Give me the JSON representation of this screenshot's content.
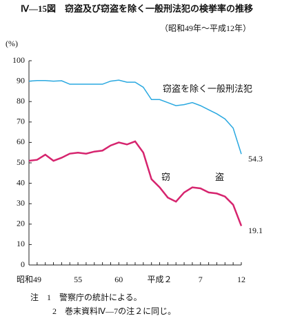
{
  "chart_data": {
    "type": "line",
    "title": "Ⅳ—15図　窃盗及び窃盗を除く一般刑法犯の検挙率の推移",
    "subtitle": "（昭和49年～平成12年）",
    "y_label": "(%)",
    "categories": [
      "昭和49",
      null,
      null,
      null,
      null,
      null,
      "55",
      null,
      null,
      null,
      null,
      "60",
      null,
      null,
      null,
      null,
      "平成２",
      null,
      null,
      null,
      null,
      "7",
      null,
      null,
      null,
      null,
      "12"
    ],
    "series": [
      {
        "name": "窃盗を除く一般刑法犯",
        "color": "#29a8e0",
        "values": [
          90,
          90.3,
          90.3,
          90,
          90.2,
          88.5,
          88.5,
          88.5,
          88.5,
          88.5,
          90,
          90.5,
          89.5,
          89.5,
          87,
          81,
          81,
          79.5,
          78,
          78.5,
          79.5,
          78,
          76,
          74,
          71.5,
          67,
          54.3
        ]
      },
      {
        "name": "窃　　　　　盗",
        "color": "#d6246e",
        "values": [
          51,
          51.5,
          54,
          51,
          52.5,
          54.5,
          55,
          54.5,
          55.5,
          56,
          58.5,
          60,
          59,
          60.5,
          55,
          42,
          38,
          33,
          31,
          35.5,
          38,
          37.5,
          35.5,
          35,
          33.5,
          29.5,
          19.1
        ]
      }
    ],
    "ylim": [
      0,
      100
    ],
    "yticks": [
      0,
      10,
      20,
      30,
      40,
      50,
      60,
      70,
      80,
      90,
      100
    ],
    "grid": false,
    "notes": [
      "注　1　警察庁の統計による。",
      "2　巻末資料Ⅳ—7の注２に同じ。"
    ]
  }
}
